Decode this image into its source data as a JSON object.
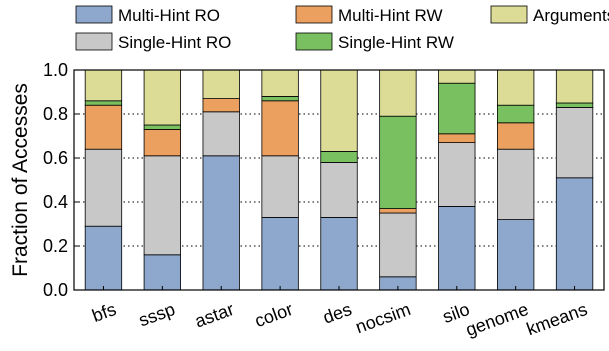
{
  "chart_data": {
    "type": "bar",
    "stacked": true,
    "ylabel": "Fraction of Accesses",
    "xlabel": "",
    "ylim": [
      0,
      1.0
    ],
    "yticks": [
      "0.0",
      "0.2",
      "0.4",
      "0.6",
      "0.8",
      "1.0"
    ],
    "ytick_values": [
      0,
      0.2,
      0.4,
      0.6,
      0.8,
      1.0
    ],
    "grid": "horizontal dotted",
    "legend_position": "top",
    "categories": [
      "bfs",
      "sssp",
      "astar",
      "color",
      "des",
      "nocsim",
      "silo",
      "genome",
      "kmeans"
    ],
    "series": [
      {
        "name": "Multi-Hint RO",
        "color": "#8DA8CC",
        "values": [
          0.29,
          0.16,
          0.61,
          0.33,
          0.33,
          0.06,
          0.38,
          0.32,
          0.51
        ]
      },
      {
        "name": "Single-Hint RO",
        "color": "#C8C8C8",
        "values": [
          0.35,
          0.45,
          0.2,
          0.28,
          0.25,
          0.29,
          0.29,
          0.32,
          0.32
        ]
      },
      {
        "name": "Multi-Hint RW",
        "color": "#EBA060",
        "values": [
          0.2,
          0.12,
          0.06,
          0.25,
          0.0,
          0.02,
          0.04,
          0.12,
          0.0
        ]
      },
      {
        "name": "Single-Hint RW",
        "color": "#78C060",
        "values": [
          0.02,
          0.02,
          0.0,
          0.02,
          0.05,
          0.42,
          0.23,
          0.08,
          0.02
        ]
      },
      {
        "name": "Arguments",
        "color": "#DCDC96",
        "values": [
          0.14,
          0.25,
          0.13,
          0.12,
          0.37,
          0.21,
          0.06,
          0.16,
          0.15
        ]
      }
    ]
  },
  "legend": [
    {
      "label": "Multi-Hint RO",
      "color": "#8DA8CC"
    },
    {
      "label": "Multi-Hint RW",
      "color": "#EBA060"
    },
    {
      "label": "Arguments",
      "color": "#DCDC96"
    },
    {
      "label": "Single-Hint RO",
      "color": "#C8C8C8"
    },
    {
      "label": "Single-Hint RW",
      "color": "#78C060"
    }
  ]
}
